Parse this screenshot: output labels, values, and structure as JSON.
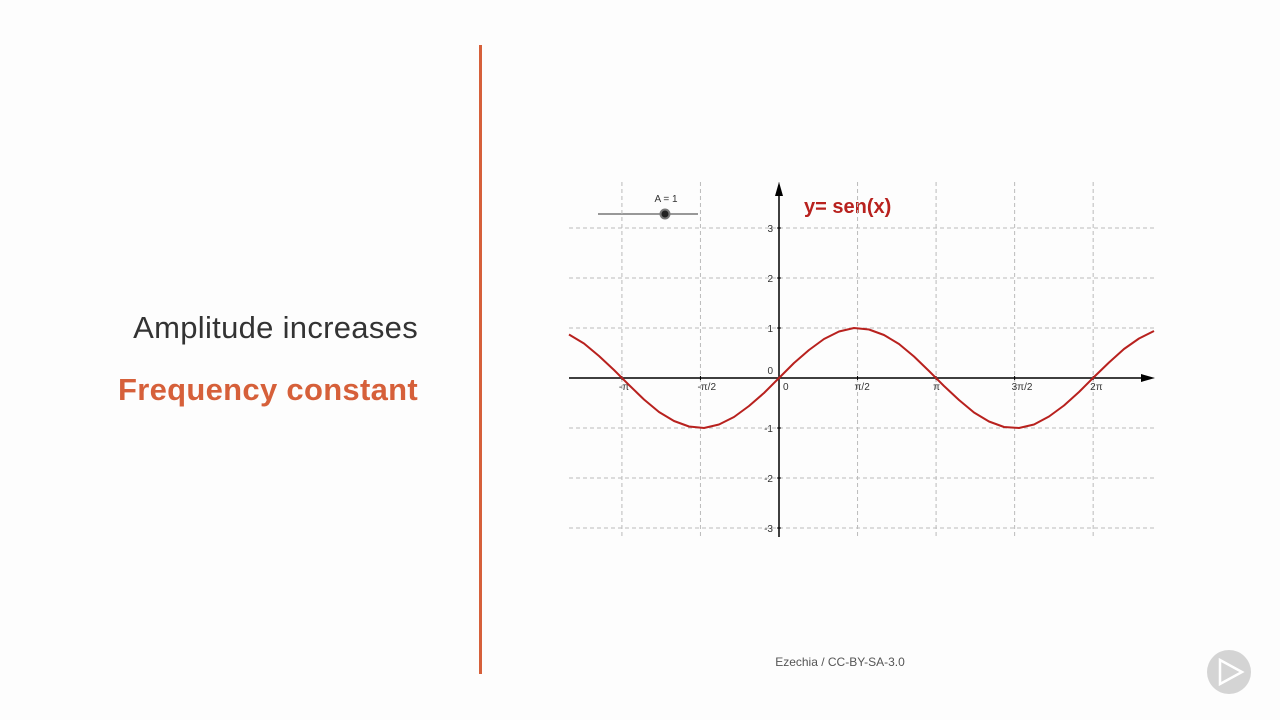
{
  "slide": {
    "heading": "Amplitude increases",
    "subheading": "Frequency constant",
    "credit": "Ezechia / CC-BY-SA-3.0"
  },
  "chart_data": {
    "type": "line",
    "title": "y= sen(x)",
    "slider_label": "A = 1",
    "x": [
      -4.2,
      -3.9,
      -3.6,
      -3.3,
      -3.0,
      -2.7,
      -2.4,
      -2.1,
      -1.8,
      -1.5,
      -1.2,
      -0.9,
      -0.6,
      -0.3,
      0,
      0.3,
      0.6,
      0.9,
      1.2,
      1.5,
      1.8,
      2.1,
      2.4,
      2.7,
      3.0,
      3.3,
      3.6,
      3.9,
      4.2,
      4.5,
      4.8,
      5.1,
      5.4,
      5.7,
      6.0,
      6.3,
      6.6,
      6.9,
      7.2,
      7.5
    ],
    "series": [
      {
        "color": "#b8211e",
        "values": [
          0.87,
          0.69,
          0.44,
          0.16,
          -0.14,
          -0.43,
          -0.68,
          -0.86,
          -0.97,
          -1.0,
          -0.93,
          -0.78,
          -0.56,
          -0.3,
          0,
          0.3,
          0.56,
          0.78,
          0.93,
          1.0,
          0.97,
          0.86,
          0.68,
          0.43,
          0.14,
          -0.16,
          -0.44,
          -0.69,
          -0.87,
          -0.98,
          -1.0,
          -0.93,
          -0.77,
          -0.55,
          -0.28,
          0.02,
          0.31,
          0.58,
          0.79,
          0.94
        ]
      }
    ],
    "xlim": [
      -4.2,
      7.52
    ],
    "ylim": [
      -3.18,
      3.92
    ],
    "xticks": [
      {
        "value": -3.14159,
        "label": "-π"
      },
      {
        "value": -1.5708,
        "label": "-π/2"
      },
      0,
      {
        "value": 1.5708,
        "label": "π/2"
      },
      {
        "value": 3.14159,
        "label": "π"
      },
      {
        "value": 4.71239,
        "label": "3π/2"
      },
      {
        "value": 6.28319,
        "label": "2π"
      }
    ],
    "yticks": [
      -3,
      -2,
      -1,
      0,
      1,
      2,
      3
    ],
    "grid": true
  }
}
